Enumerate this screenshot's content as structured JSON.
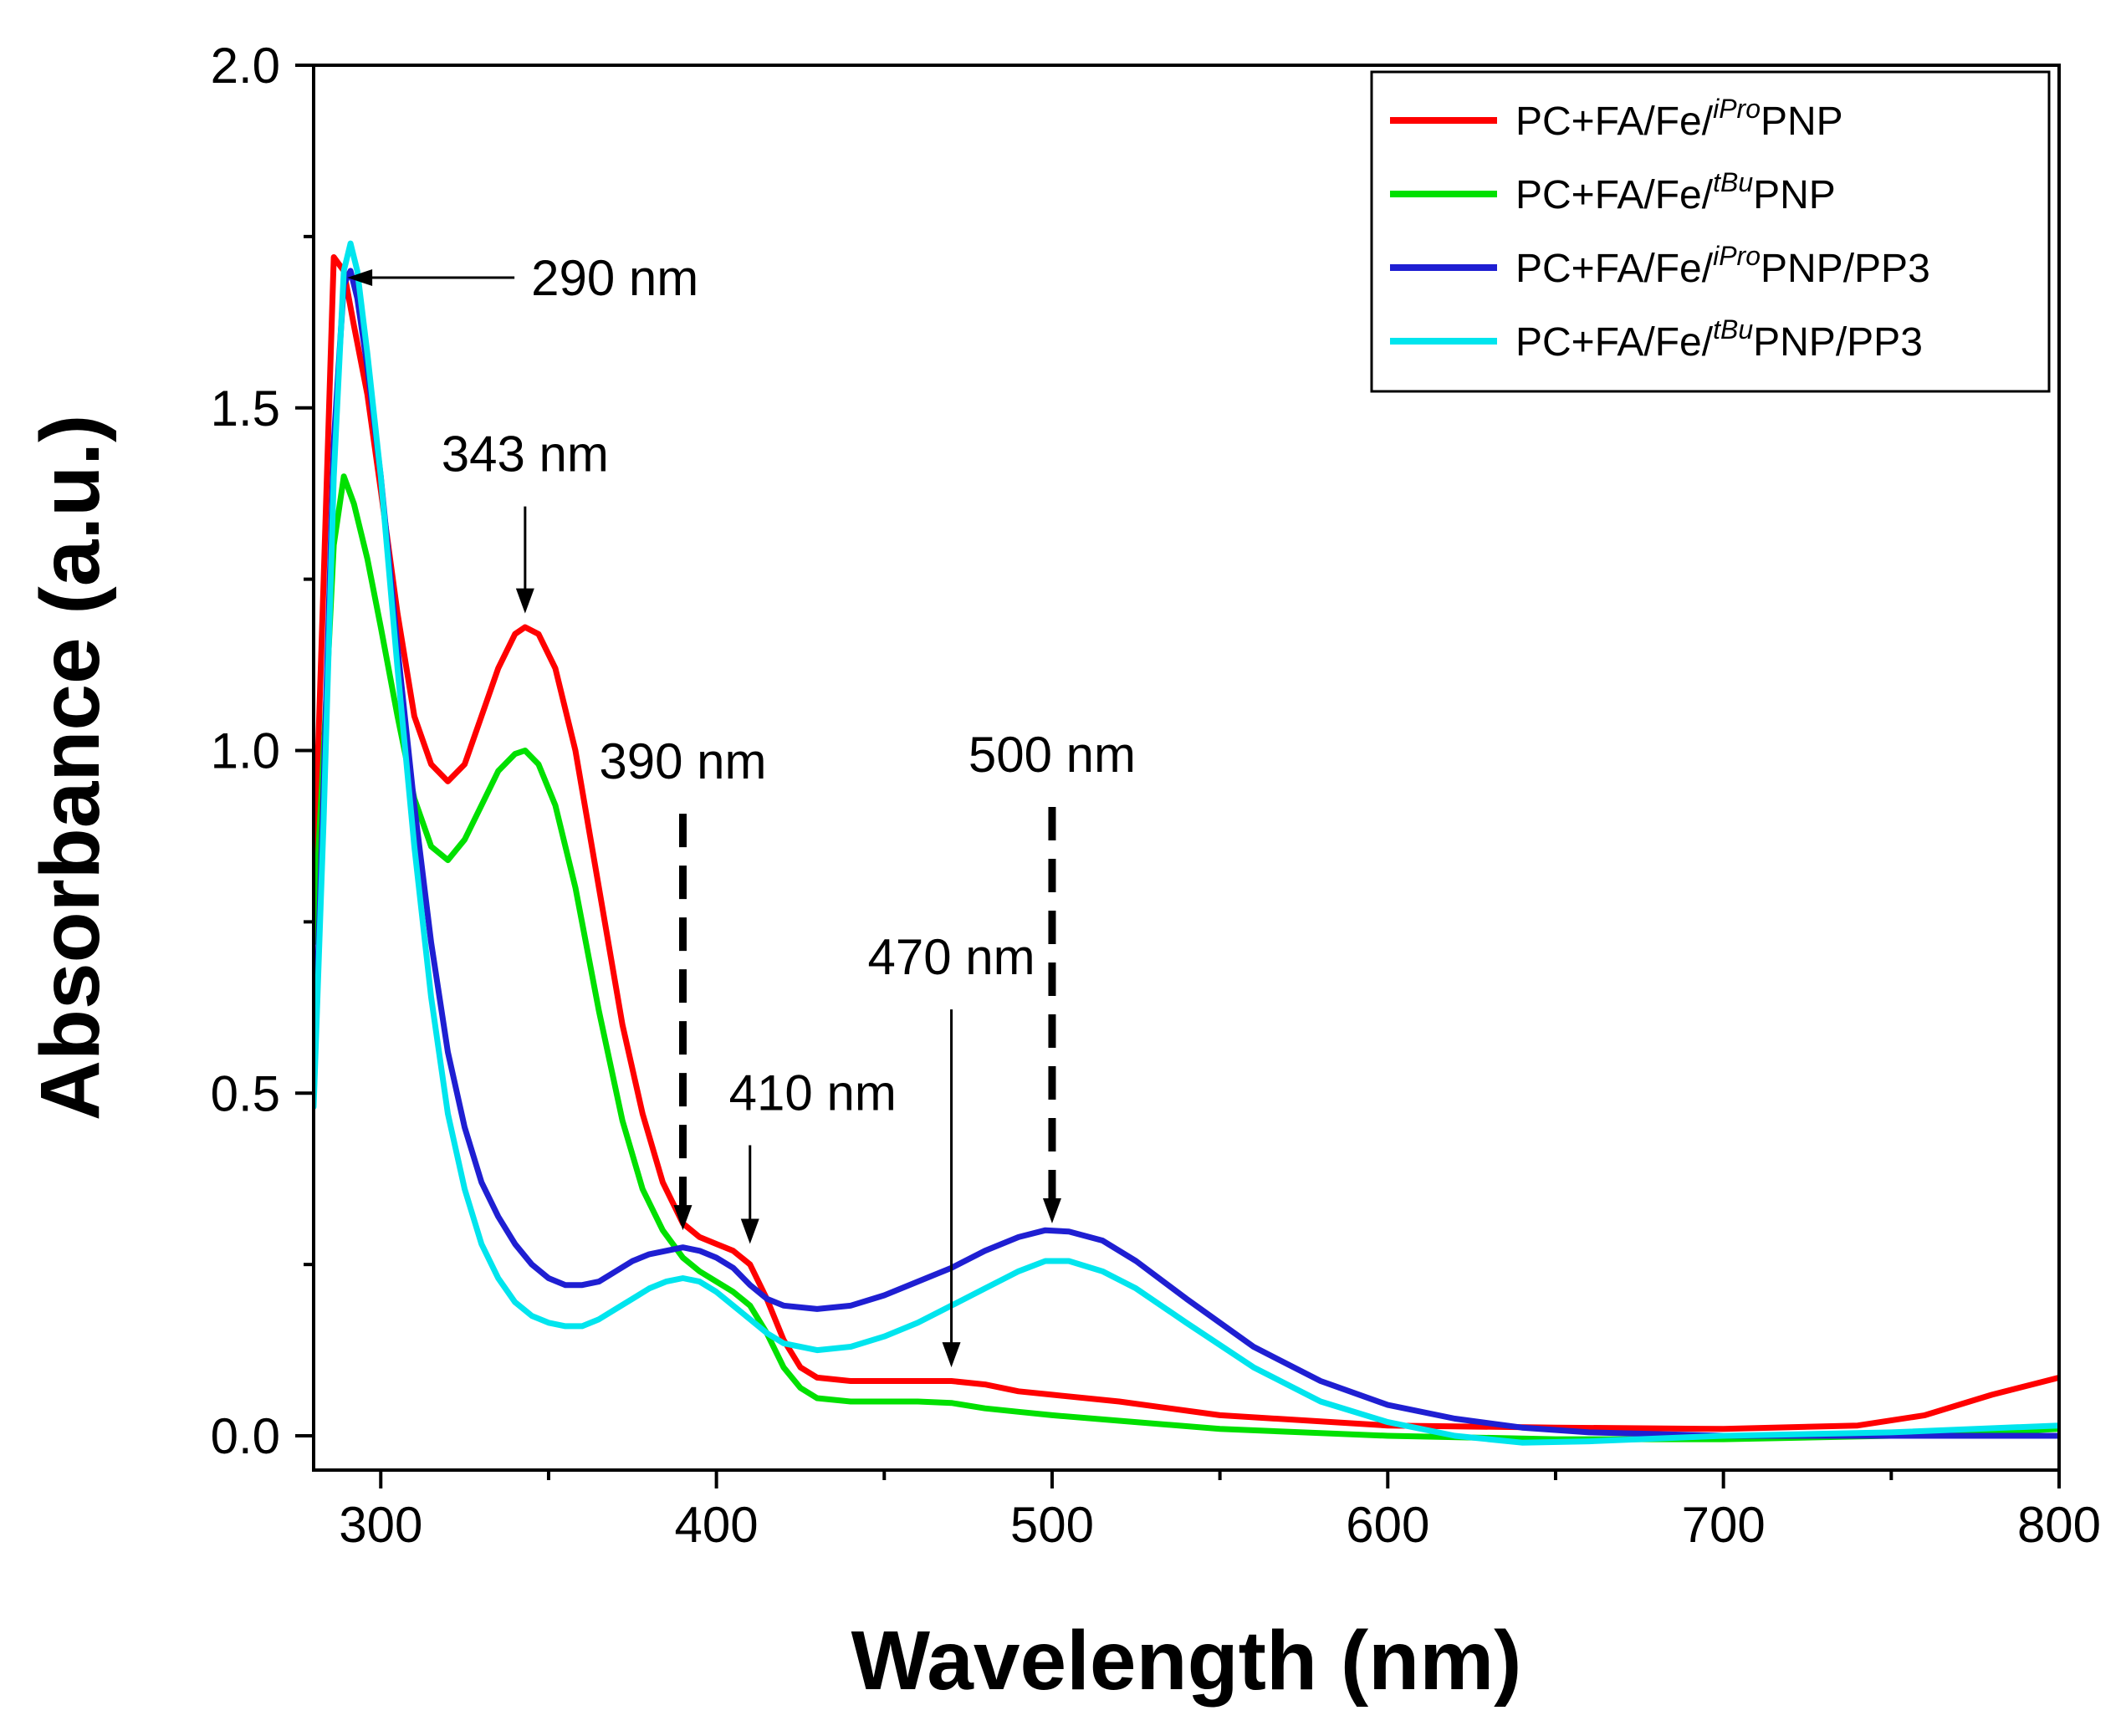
{
  "chart_data": {
    "type": "line",
    "title": "",
    "xlabel": "Wavelength (nm)",
    "ylabel": "Absorbance (a.u.)",
    "xlim": [
      280,
      800
    ],
    "ylim": [
      -0.05,
      2.0
    ],
    "x_ticks": [
      300,
      400,
      500,
      600,
      700,
      800
    ],
    "y_ticks": [
      0.0,
      0.5,
      1.0,
      1.5,
      2.0
    ],
    "x_tick_labels": [
      "300",
      "400",
      "500",
      "600",
      "700",
      "800"
    ],
    "y_tick_labels": [
      "0.0",
      "0.5",
      "1.0",
      "1.5",
      "2.0"
    ],
    "grid": false,
    "legend_position": "top-right",
    "series": [
      {
        "name": "PC+FA/Fe/iProPNP",
        "legend": {
          "prefix": "PC+FA/Fe/",
          "sup": "iPro",
          "suffix": "PNP"
        },
        "color": "#ff0000",
        "points": [
          [
            280,
            0.8
          ],
          [
            283,
            1.25
          ],
          [
            286,
            1.72
          ],
          [
            289,
            1.7
          ],
          [
            292,
            1.62
          ],
          [
            296,
            1.52
          ],
          [
            300,
            1.38
          ],
          [
            305,
            1.2
          ],
          [
            310,
            1.05
          ],
          [
            315,
            0.98
          ],
          [
            320,
            0.955
          ],
          [
            325,
            0.98
          ],
          [
            330,
            1.05
          ],
          [
            335,
            1.12
          ],
          [
            340,
            1.17
          ],
          [
            343,
            1.18
          ],
          [
            347,
            1.17
          ],
          [
            352,
            1.12
          ],
          [
            358,
            1.0
          ],
          [
            365,
            0.8
          ],
          [
            372,
            0.6
          ],
          [
            378,
            0.47
          ],
          [
            384,
            0.37
          ],
          [
            390,
            0.31
          ],
          [
            395,
            0.29
          ],
          [
            400,
            0.28
          ],
          [
            405,
            0.27
          ],
          [
            410,
            0.25
          ],
          [
            415,
            0.2
          ],
          [
            420,
            0.14
          ],
          [
            425,
            0.1
          ],
          [
            430,
            0.085
          ],
          [
            440,
            0.08
          ],
          [
            450,
            0.08
          ],
          [
            460,
            0.08
          ],
          [
            470,
            0.08
          ],
          [
            480,
            0.075
          ],
          [
            490,
            0.065
          ],
          [
            500,
            0.06
          ],
          [
            520,
            0.05
          ],
          [
            550,
            0.03
          ],
          [
            600,
            0.015
          ],
          [
            650,
            0.012
          ],
          [
            700,
            0.01
          ],
          [
            740,
            0.015
          ],
          [
            760,
            0.03
          ],
          [
            780,
            0.06
          ],
          [
            800,
            0.085
          ]
        ]
      },
      {
        "name": "PC+FA/Fe/tBuPNP",
        "legend": {
          "prefix": "PC+FA/Fe/",
          "sup": "tBu",
          "suffix": "PNP"
        },
        "color": "#00e000",
        "points": [
          [
            280,
            0.72
          ],
          [
            283,
            1.0
          ],
          [
            286,
            1.3
          ],
          [
            289,
            1.4
          ],
          [
            292,
            1.36
          ],
          [
            296,
            1.28
          ],
          [
            300,
            1.18
          ],
          [
            305,
            1.05
          ],
          [
            310,
            0.93
          ],
          [
            315,
            0.86
          ],
          [
            320,
            0.84
          ],
          [
            325,
            0.87
          ],
          [
            330,
            0.92
          ],
          [
            335,
            0.97
          ],
          [
            340,
            0.995
          ],
          [
            343,
            1.0
          ],
          [
            347,
            0.98
          ],
          [
            352,
            0.92
          ],
          [
            358,
            0.8
          ],
          [
            365,
            0.62
          ],
          [
            372,
            0.46
          ],
          [
            378,
            0.36
          ],
          [
            384,
            0.3
          ],
          [
            390,
            0.26
          ],
          [
            395,
            0.24
          ],
          [
            400,
            0.225
          ],
          [
            405,
            0.21
          ],
          [
            410,
            0.19
          ],
          [
            415,
            0.15
          ],
          [
            420,
            0.1
          ],
          [
            425,
            0.07
          ],
          [
            430,
            0.055
          ],
          [
            440,
            0.05
          ],
          [
            450,
            0.05
          ],
          [
            460,
            0.05
          ],
          [
            470,
            0.048
          ],
          [
            480,
            0.04
          ],
          [
            490,
            0.035
          ],
          [
            500,
            0.03
          ],
          [
            520,
            0.022
          ],
          [
            550,
            0.01
          ],
          [
            600,
            0.0
          ],
          [
            650,
            -0.005
          ],
          [
            700,
            -0.005
          ],
          [
            750,
            0.0
          ],
          [
            780,
            0.005
          ],
          [
            800,
            0.01
          ]
        ]
      },
      {
        "name": "PC+FA/Fe/iProPNP/PP3",
        "legend": {
          "prefix": "PC+FA/Fe/",
          "sup": "iPro",
          "suffix": "PNP/PP3"
        },
        "color": "#1f1fd2",
        "points": [
          [
            280,
            0.5
          ],
          [
            283,
            0.95
          ],
          [
            286,
            1.45
          ],
          [
            289,
            1.68
          ],
          [
            291,
            1.7
          ],
          [
            293,
            1.66
          ],
          [
            296,
            1.56
          ],
          [
            300,
            1.4
          ],
          [
            305,
            1.15
          ],
          [
            310,
            0.92
          ],
          [
            315,
            0.72
          ],
          [
            320,
            0.56
          ],
          [
            325,
            0.45
          ],
          [
            330,
            0.37
          ],
          [
            335,
            0.32
          ],
          [
            340,
            0.28
          ],
          [
            345,
            0.25
          ],
          [
            350,
            0.23
          ],
          [
            355,
            0.22
          ],
          [
            360,
            0.22
          ],
          [
            365,
            0.225
          ],
          [
            370,
            0.24
          ],
          [
            375,
            0.255
          ],
          [
            380,
            0.265
          ],
          [
            385,
            0.27
          ],
          [
            390,
            0.275
          ],
          [
            395,
            0.27
          ],
          [
            400,
            0.26
          ],
          [
            405,
            0.245
          ],
          [
            410,
            0.22
          ],
          [
            415,
            0.2
          ],
          [
            420,
            0.19
          ],
          [
            430,
            0.185
          ],
          [
            440,
            0.19
          ],
          [
            450,
            0.205
          ],
          [
            460,
            0.225
          ],
          [
            470,
            0.245
          ],
          [
            480,
            0.27
          ],
          [
            490,
            0.29
          ],
          [
            498,
            0.3
          ],
          [
            505,
            0.298
          ],
          [
            515,
            0.285
          ],
          [
            525,
            0.255
          ],
          [
            540,
            0.2
          ],
          [
            560,
            0.13
          ],
          [
            580,
            0.08
          ],
          [
            600,
            0.045
          ],
          [
            620,
            0.025
          ],
          [
            640,
            0.012
          ],
          [
            660,
            0.005
          ],
          [
            700,
            0.0
          ],
          [
            750,
            0.0
          ],
          [
            800,
            0.0
          ]
        ]
      },
      {
        "name": "PC+FA/Fe/tBuPNP/PP3",
        "legend": {
          "prefix": "PC+FA/Fe/",
          "sup": "tBu",
          "suffix": "PNP/PP3"
        },
        "color": "#00e5ee",
        "points": [
          [
            280,
            0.48
          ],
          [
            283,
            0.9
          ],
          [
            286,
            1.4
          ],
          [
            289,
            1.7
          ],
          [
            291,
            1.74
          ],
          [
            293,
            1.7
          ],
          [
            296,
            1.58
          ],
          [
            300,
            1.4
          ],
          [
            305,
            1.12
          ],
          [
            310,
            0.86
          ],
          [
            315,
            0.64
          ],
          [
            320,
            0.47
          ],
          [
            325,
            0.36
          ],
          [
            330,
            0.28
          ],
          [
            335,
            0.23
          ],
          [
            340,
            0.195
          ],
          [
            345,
            0.175
          ],
          [
            350,
            0.165
          ],
          [
            355,
            0.16
          ],
          [
            360,
            0.16
          ],
          [
            365,
            0.17
          ],
          [
            370,
            0.185
          ],
          [
            375,
            0.2
          ],
          [
            380,
            0.215
          ],
          [
            385,
            0.225
          ],
          [
            390,
            0.23
          ],
          [
            395,
            0.225
          ],
          [
            400,
            0.21
          ],
          [
            405,
            0.19
          ],
          [
            410,
            0.17
          ],
          [
            415,
            0.15
          ],
          [
            420,
            0.135
          ],
          [
            430,
            0.125
          ],
          [
            440,
            0.13
          ],
          [
            450,
            0.145
          ],
          [
            460,
            0.165
          ],
          [
            470,
            0.19
          ],
          [
            480,
            0.215
          ],
          [
            490,
            0.24
          ],
          [
            498,
            0.255
          ],
          [
            505,
            0.255
          ],
          [
            515,
            0.24
          ],
          [
            525,
            0.215
          ],
          [
            540,
            0.165
          ],
          [
            560,
            0.1
          ],
          [
            580,
            0.05
          ],
          [
            600,
            0.02
          ],
          [
            620,
            0.0
          ],
          [
            640,
            -0.01
          ],
          [
            660,
            -0.008
          ],
          [
            700,
            0.0
          ],
          [
            750,
            0.005
          ],
          [
            800,
            0.015
          ]
        ]
      }
    ],
    "annotations": [
      {
        "text": "290 nm",
        "x": 290,
        "y": 1.69,
        "style": "solid",
        "direction": "left"
      },
      {
        "text": "343 nm",
        "x": 343,
        "y": 1.2,
        "style": "solid",
        "direction": "down"
      },
      {
        "text": "390 nm",
        "x": 390,
        "y": 0.3,
        "style": "dashed",
        "direction": "down"
      },
      {
        "text": "410 nm",
        "x": 410,
        "y": 0.28,
        "style": "solid",
        "direction": "down"
      },
      {
        "text": "470 nm",
        "x": 470,
        "y": 0.1,
        "style": "solid",
        "direction": "down"
      },
      {
        "text": "500 nm",
        "x": 500,
        "y": 0.31,
        "style": "dashed",
        "direction": "down"
      }
    ]
  }
}
